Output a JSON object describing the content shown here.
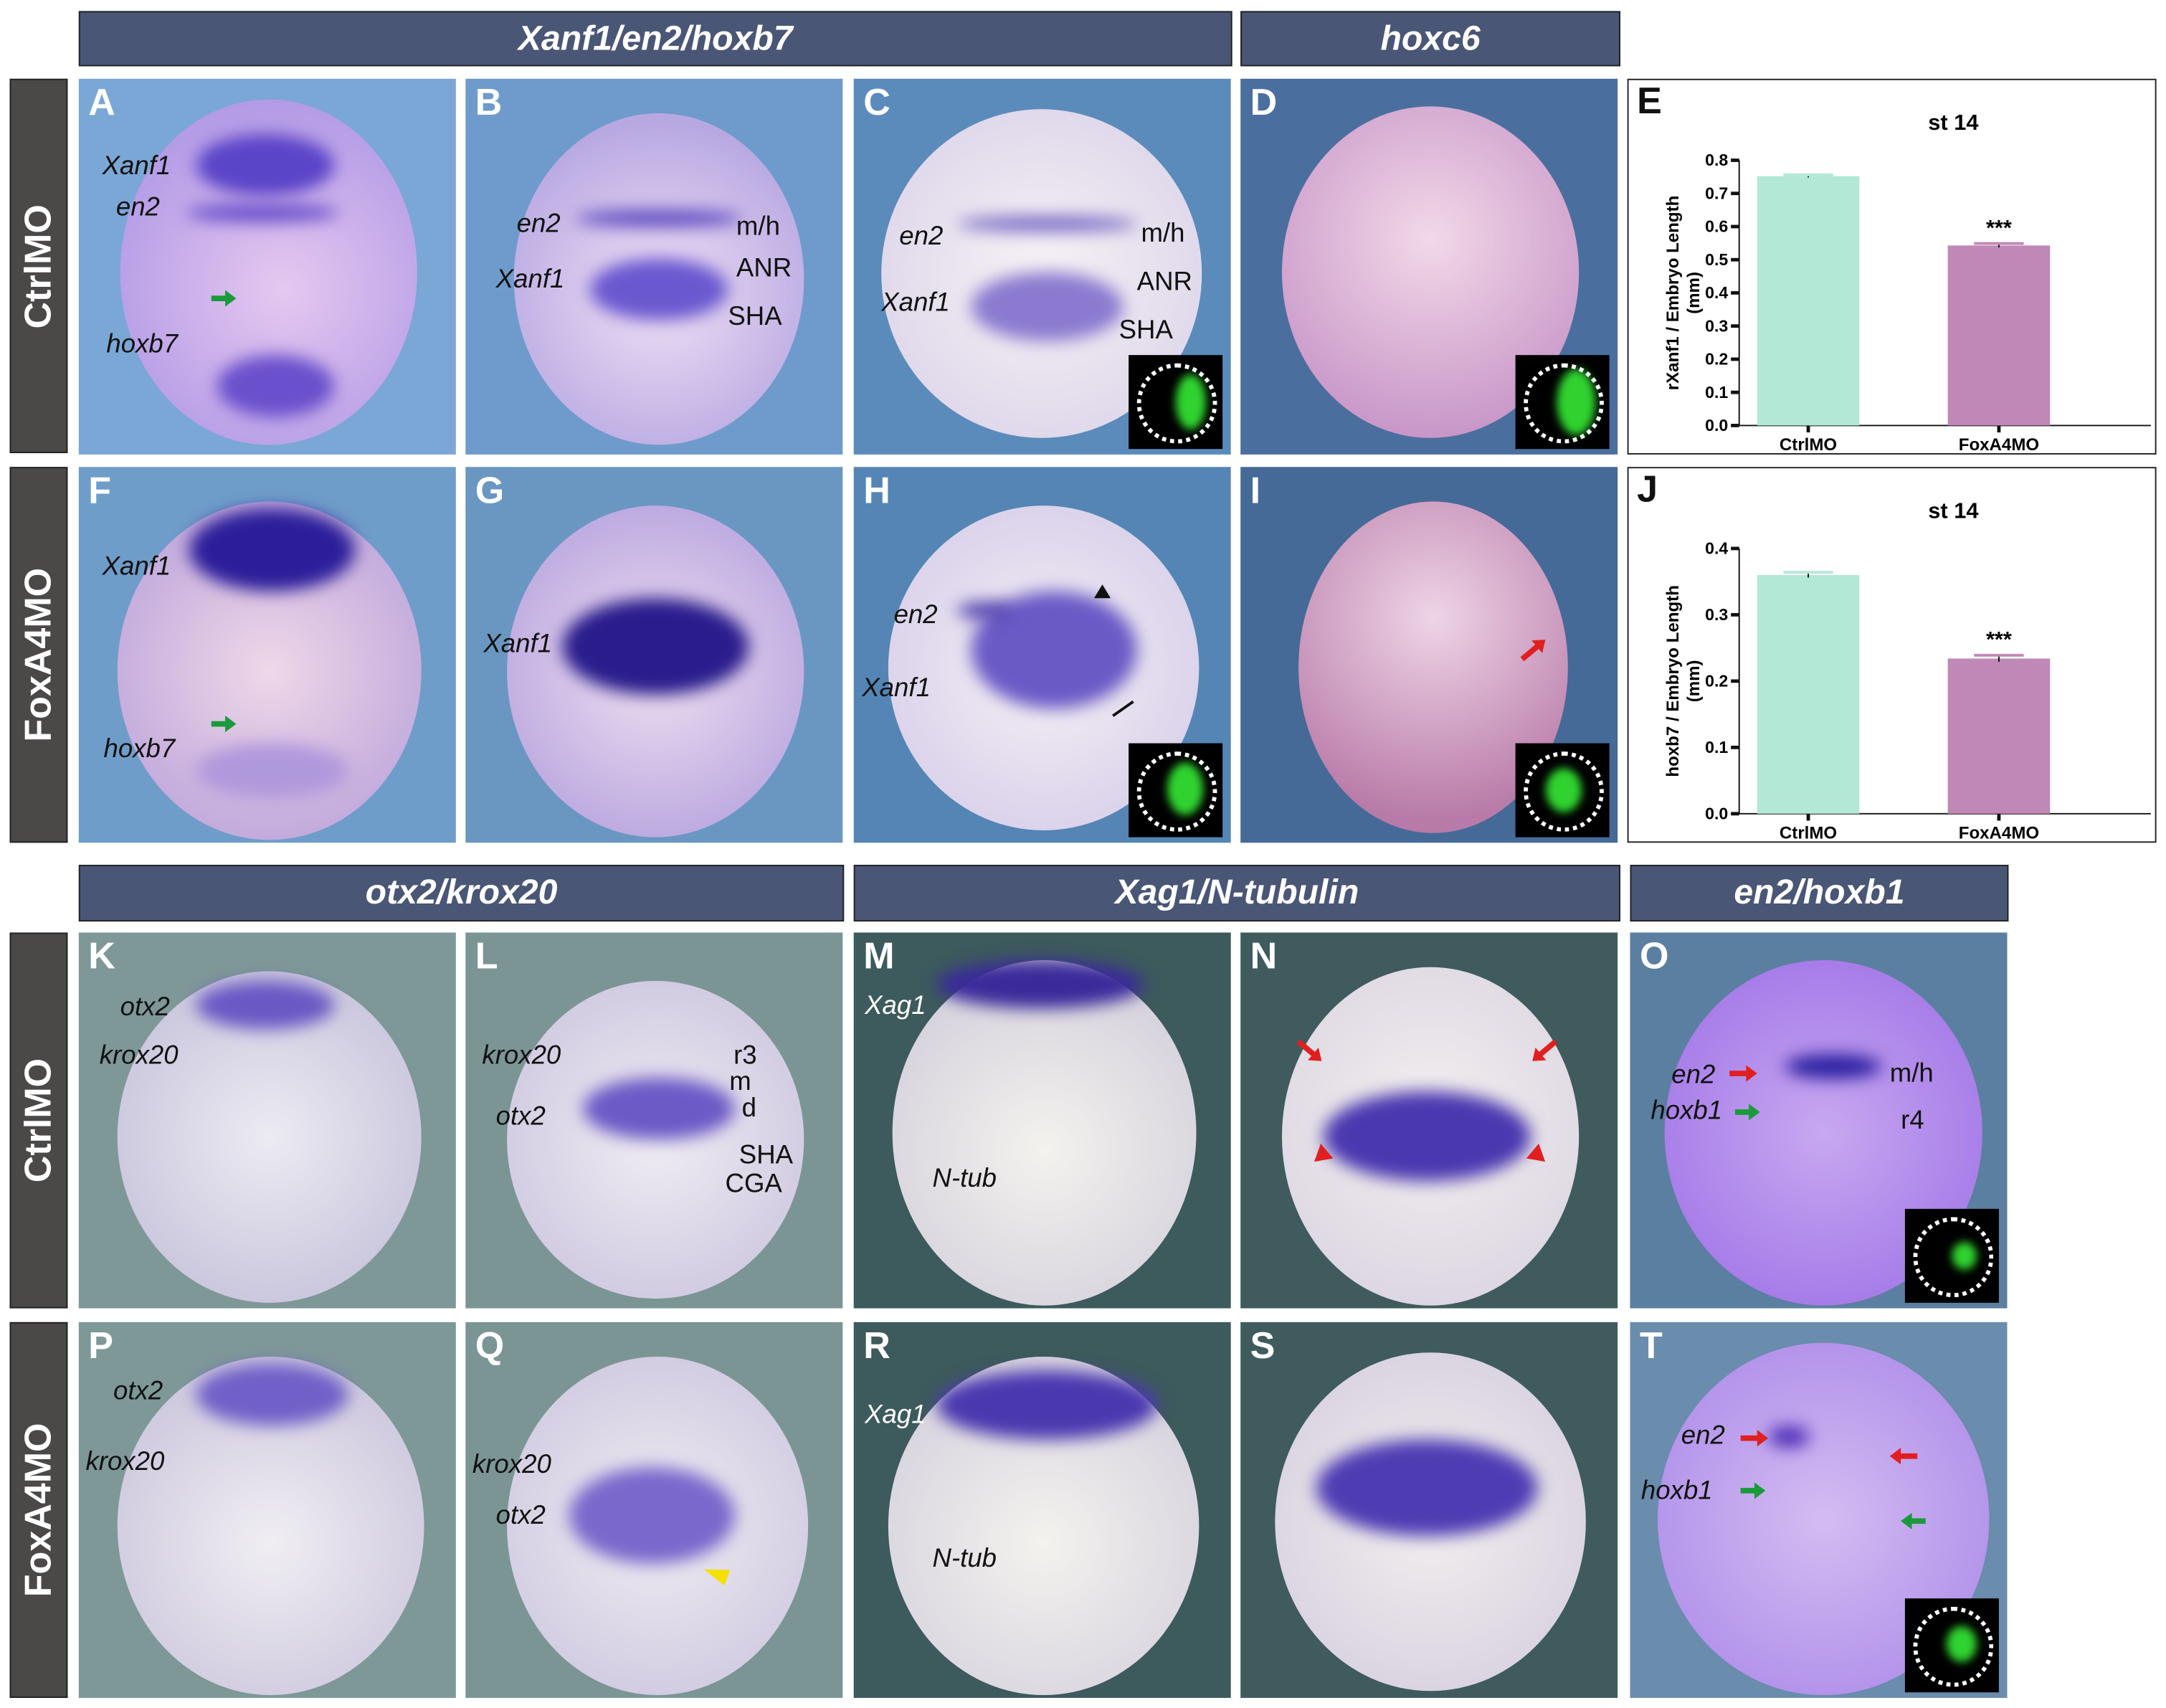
{
  "column_headers": {
    "top_left": "Xanf1/en2/hoxb7",
    "top_right": "hoxc6",
    "bottom_left": "otx2/krox20",
    "bottom_mid": "Xag1/N-tubulin",
    "bottom_right": "en2/hoxb1"
  },
  "row_labels": {
    "r1": "CtrlMO",
    "r2": "FoxA4MO",
    "r3": "CtrlMO",
    "r4": "FoxA4MO"
  },
  "panels": {
    "A": {
      "letter": "A",
      "labels": [
        "Xanf1",
        "en2",
        "hoxb7"
      ]
    },
    "B": {
      "letter": "B",
      "labels": [
        "en2",
        "Xanf1",
        "m/h",
        "ANR",
        "SHA"
      ]
    },
    "C": {
      "letter": "C",
      "labels": [
        "en2",
        "Xanf1",
        "m/h",
        "ANR",
        "SHA"
      ]
    },
    "D": {
      "letter": "D"
    },
    "F": {
      "letter": "F",
      "labels": [
        "Xanf1",
        "hoxb7"
      ]
    },
    "G": {
      "letter": "G",
      "labels": [
        "Xanf1"
      ]
    },
    "H": {
      "letter": "H",
      "labels": [
        "en2",
        "Xanf1"
      ]
    },
    "I": {
      "letter": "I"
    },
    "K": {
      "letter": "K",
      "labels": [
        "otx2",
        "krox20"
      ]
    },
    "L": {
      "letter": "L",
      "labels": [
        "krox20",
        "otx2",
        "r3",
        "m",
        "d",
        "SHA",
        "CGA"
      ]
    },
    "M": {
      "letter": "M",
      "labels": [
        "Xag1",
        "N-tub"
      ]
    },
    "N": {
      "letter": "N"
    },
    "O": {
      "letter": "O",
      "labels": [
        "en2",
        "hoxb1",
        "m/h",
        "r4"
      ]
    },
    "P": {
      "letter": "P",
      "labels": [
        "otx2",
        "krox20"
      ]
    },
    "Q": {
      "letter": "Q",
      "labels": [
        "krox20",
        "otx2"
      ]
    },
    "R": {
      "letter": "R",
      "labels": [
        "Xag1",
        "N-tub"
      ]
    },
    "S": {
      "letter": "S"
    },
    "T": {
      "letter": "T",
      "labels": [
        "en2",
        "hoxb1"
      ]
    }
  },
  "colors": {
    "ctrl_bar": "#b3e8d6",
    "foxa4_bar": "#c088b6",
    "header_bg": "#4a5676",
    "row_label_bg": "#4b4848",
    "arrow_green": "#1a9a3a",
    "arrow_red": "#e02020",
    "arrowhead_yellow": "#f5e000"
  },
  "chart_data": [
    {
      "panel": "E",
      "type": "bar",
      "title": "st 14",
      "ylabel": "rXanf1 / Embryo Length (mm)",
      "categories": [
        "CtrlMO",
        "FoxA4MO"
      ],
      "values": [
        0.752,
        0.543
      ],
      "error": [
        0.004,
        0.006
      ],
      "significance": [
        "",
        "***"
      ],
      "ylim": [
        0,
        0.8
      ],
      "yticks": [
        "0.0",
        "0.1",
        "0.2",
        "0.3",
        "0.4",
        "0.5",
        "0.6",
        "0.7",
        "0.8"
      ],
      "grid": false
    },
    {
      "panel": "J",
      "type": "bar",
      "title": "st 14",
      "ylabel": "hoxb7 / Embryo Length (mm)",
      "categories": [
        "CtrlMO",
        "FoxA4MO"
      ],
      "values": [
        0.36,
        0.234
      ],
      "error": [
        0.004,
        0.005
      ],
      "significance": [
        "",
        "***"
      ],
      "ylim": [
        0,
        0.4
      ],
      "yticks": [
        "0.0",
        "0.1",
        "0.2",
        "0.3",
        "0.4"
      ],
      "grid": false
    }
  ]
}
